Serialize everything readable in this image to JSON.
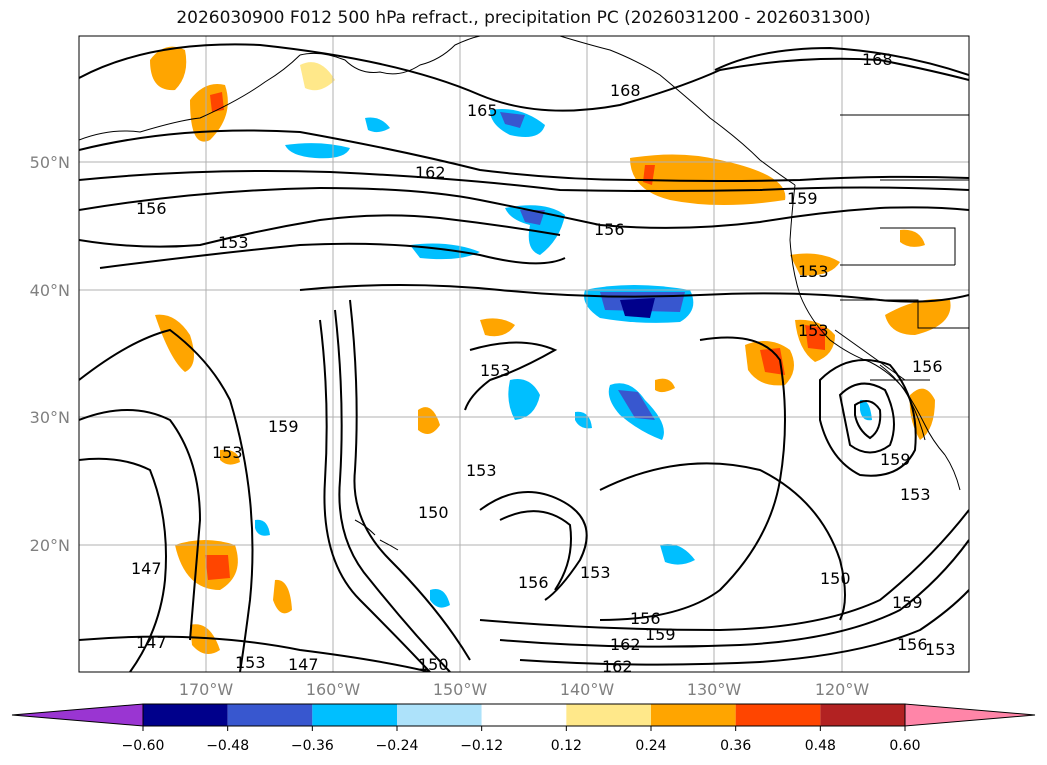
{
  "title": "2026030900 F012 500 hPa refract., precipitation PC (2026031200 - 2026031300)",
  "lat_ticks": [
    "50°N",
    "40°N",
    "30°N",
    "20°N"
  ],
  "lon_ticks": [
    "170°W",
    "160°W",
    "150°W",
    "140°W",
    "130°W",
    "120°W"
  ],
  "contour_labels": [
    "168",
    "168",
    "165",
    "162",
    "159",
    "156",
    "156",
    "153",
    "153",
    "153",
    "153",
    "153",
    "153",
    "159",
    "153",
    "150",
    "147",
    "147",
    "147",
    "150",
    "156",
    "153",
    "156",
    "159",
    "162",
    "162",
    "150",
    "159",
    "156",
    "153",
    "159",
    "156",
    "153"
  ],
  "colorbar": {
    "ticks": [
      "−0.60",
      "−0.48",
      "−0.36",
      "−0.24",
      "−0.12",
      "0.12",
      "0.24",
      "0.36",
      "0.48",
      "0.60"
    ],
    "colors": [
      "#9a35d2",
      "#00008b",
      "#3857cf",
      "#00bfff",
      "#ade2fa",
      "#ffffff",
      "#ffe88a",
      "#ffa500",
      "#ff4500",
      "#b22222",
      "#ff85a8"
    ]
  },
  "colors": {
    "contour": "#000000",
    "coast": "#000000",
    "grid": "#b0b0b0"
  }
}
